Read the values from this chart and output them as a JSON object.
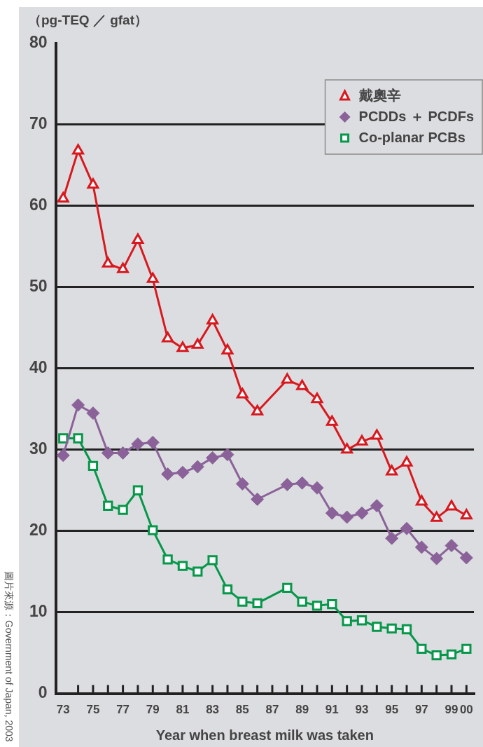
{
  "chart_data": {
    "type": "line",
    "ylabel": "（pg-TEQ ／ gfat）",
    "xlabel": "Year when breast milk was taken",
    "categories": [
      "73",
      null,
      "75",
      null,
      "77",
      null,
      "79",
      null,
      "81",
      null,
      "83",
      null,
      "85",
      null,
      "87",
      null,
      "89",
      null,
      "91",
      null,
      "93",
      null,
      "95",
      null,
      "97",
      null,
      "99",
      "00"
    ],
    "series": [
      {
        "name": "戴奧辛",
        "color": "#d7191f",
        "marker": "triangle",
        "values": [
          60.9,
          66.8,
          62.6,
          52.9,
          52.2,
          55.8,
          51.0,
          43.7,
          42.5,
          42.9,
          45.9,
          42.2,
          36.8,
          34.7,
          null,
          38.6,
          37.8,
          36.2,
          33.4,
          30.0,
          31.0,
          31.7,
          27.3,
          28.4,
          23.6,
          21.6,
          23.0,
          21.9
        ]
      },
      {
        "name": "PCDDs ＋ PCDFs",
        "color": "#8a6299",
        "marker": "diamond",
        "values": [
          29.3,
          35.5,
          34.5,
          29.6,
          29.6,
          30.7,
          30.9,
          27.0,
          27.2,
          27.9,
          29.0,
          29.4,
          25.8,
          23.9,
          null,
          25.7,
          25.9,
          25.3,
          22.2,
          21.7,
          22.2,
          23.1,
          19.1,
          20.3,
          18.0,
          16.6,
          18.2,
          16.7
        ]
      },
      {
        "name": "Co-planar PCBs",
        "color": "#06974a",
        "marker": "square",
        "values": [
          31.4,
          31.4,
          28.0,
          23.1,
          22.6,
          25.0,
          20.1,
          16.5,
          15.7,
          15.0,
          16.4,
          12.8,
          11.3,
          11.1,
          null,
          13.0,
          11.3,
          10.8,
          11.0,
          8.9,
          9.0,
          8.2,
          8.0,
          7.9,
          5.5,
          4.7,
          4.8,
          5.5
        ]
      }
    ],
    "ylim": [
      0,
      80
    ],
    "yticks": [
      0,
      10,
      20,
      30,
      40,
      50,
      60,
      70,
      80
    ],
    "grid": "y",
    "legend": "top right",
    "line_style": "solid",
    "annotations": [
      "圖片來源：Government of Japan, 2003"
    ]
  }
}
